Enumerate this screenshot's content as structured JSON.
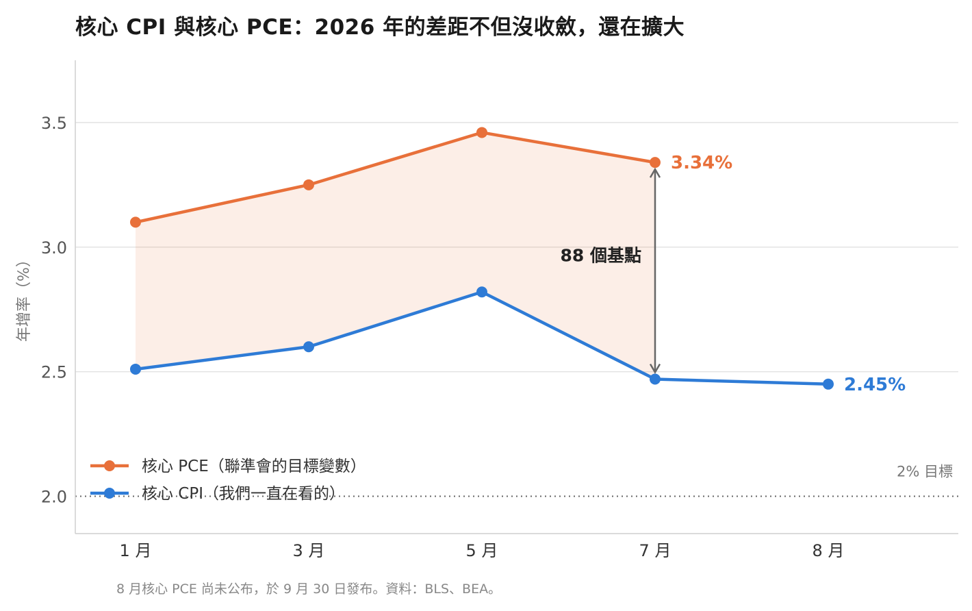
{
  "title": "核心 CPI 與核心 PCE：2026 年的差距不但沒收斂，還在擴大",
  "footnote": "8 月核心 PCE 尚未公布，於 9 月 30 日發布。資料：BLS、BEA。",
  "chart_data": {
    "type": "line",
    "categories": [
      "1 月",
      "3 月",
      "5 月",
      "7 月",
      "8 月"
    ],
    "series": [
      {
        "name": "核心 PCE（聯準會的目標變數）",
        "color": "#E8703A",
        "values": [
          3.1,
          3.25,
          3.46,
          3.34,
          null
        ],
        "end_label": "3.34%"
      },
      {
        "name": "核心 CPI（我們一直在看的）",
        "color": "#2E7BD6",
        "values": [
          2.51,
          2.6,
          2.82,
          2.47,
          2.45
        ],
        "end_label": "2.45%"
      }
    ],
    "ylabel": "年增率（%）",
    "xlabel": "",
    "ylim": [
      1.85,
      3.75
    ],
    "yticks": [
      "2.0",
      "2.5",
      "3.0",
      "3.5"
    ],
    "ytick_values": [
      2.0,
      2.5,
      3.0,
      3.5
    ],
    "reference_line": {
      "value": 2.0,
      "label": "2% 目標",
      "style": "dotted"
    },
    "gap_annotation": {
      "label": "88 個基點",
      "category": "7 月"
    },
    "shaded_gap": true,
    "grid": true,
    "legend_position": "bottom-left"
  }
}
